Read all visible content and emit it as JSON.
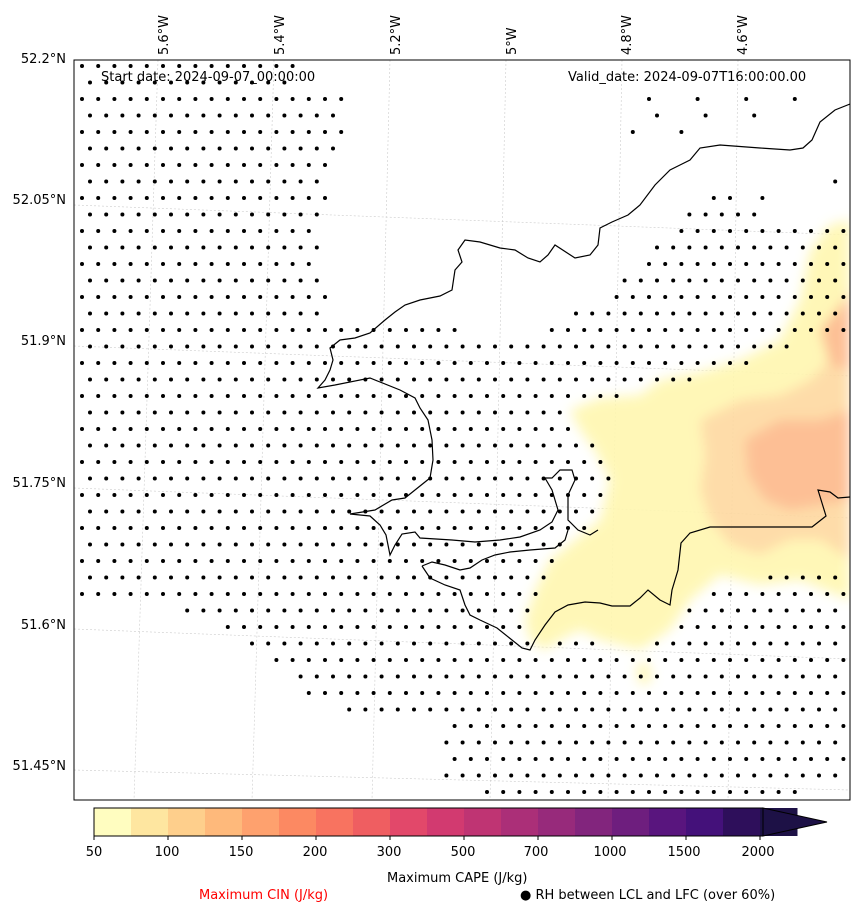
{
  "map": {
    "start_date": "Start date: 2024-09-07_00:00:00",
    "valid_date": "Valid_date: 2024-09-07T16:00:00.00",
    "lon_labels": [
      "5.6°W",
      "5.4°W",
      "5.2°W",
      "5°W",
      "4.8°W",
      "4.6°W"
    ],
    "lat_labels": [
      "52.2°N",
      "52.05°N",
      "51.9°N",
      "51.75°N",
      "51.6°N",
      "51.45°N"
    ],
    "lon_range": [
      -5.73,
      -4.51
    ],
    "lat_range": [
      51.43,
      52.2
    ]
  },
  "colorbar": {
    "label": "Maximum CAPE (J/kg)",
    "ticks": [
      "50",
      "100",
      "150",
      "200",
      "300",
      "500",
      "700",
      "1000",
      "1500",
      "2000"
    ],
    "colors": [
      "#fffdc0",
      "#fee6a0",
      "#fecf8c",
      "#feb97b",
      "#fea16e",
      "#fc8962",
      "#f87360",
      "#ef5e61",
      "#e2486a",
      "#d23a70",
      "#bf3473",
      "#ab2f78",
      "#972a7b",
      "#82257d",
      "#6e1e7e",
      "#59157e",
      "#44117a",
      "#2e0f5b",
      "#1d1146"
    ]
  },
  "legend": {
    "cin_label": "Maximum CIN (J/kg)",
    "cin_color": "#ff0000",
    "rh_label": "RH between LCL and LFC (over 60%)",
    "rh_marker": "●"
  }
}
